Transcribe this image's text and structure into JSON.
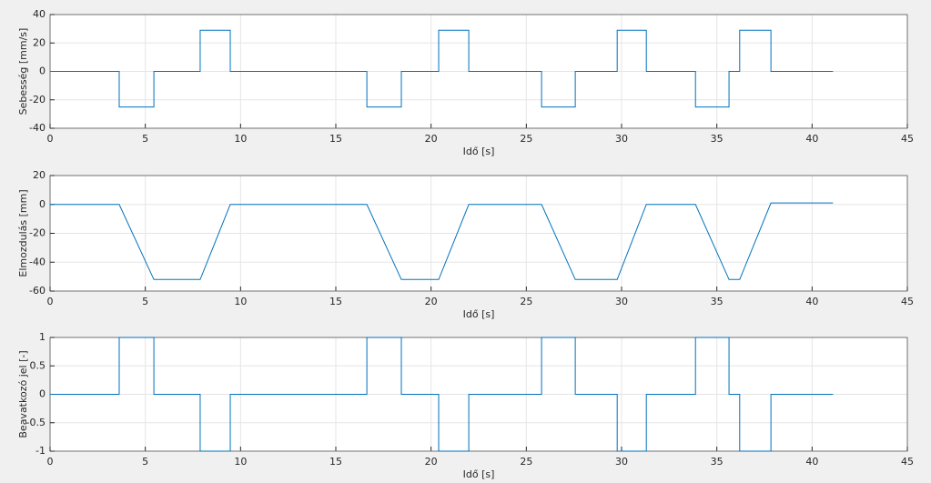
{
  "chart_data": [
    {
      "type": "line",
      "xlabel": "Idő [s]",
      "ylabel": "Sebesség [mm/s]",
      "x": [
        0,
        3.63,
        3.63,
        5.45,
        5.45,
        7.88,
        7.88,
        9.46,
        9.46,
        16.63,
        16.63,
        18.44,
        18.44,
        20.4,
        20.4,
        21.98,
        21.98,
        25.8,
        25.8,
        27.57,
        27.57,
        29.77,
        29.77,
        31.3,
        31.3,
        33.88,
        33.88,
        35.64,
        35.64,
        36.2,
        36.2,
        37.84,
        37.84,
        41.1
      ],
      "values": [
        0,
        0,
        -25,
        -25,
        0,
        0,
        29,
        29,
        0,
        0,
        -25,
        -25,
        0,
        0,
        29,
        29,
        0,
        0,
        -25,
        -25,
        0,
        0,
        29,
        29,
        0,
        0,
        -25,
        -25,
        0,
        0,
        29,
        29,
        0,
        0
      ],
      "color": "#0072bd",
      "xlim": [
        0,
        45
      ],
      "xticks": [
        0,
        5,
        10,
        15,
        20,
        25,
        30,
        35,
        40,
        45
      ],
      "ylim": [
        -40,
        40
      ],
      "yticks": [
        -40,
        -20,
        0,
        20,
        40
      ],
      "grid": true
    },
    {
      "type": "line",
      "xlabel": "Idő [s]",
      "ylabel": "Elmozdulás [mm]",
      "x": [
        0,
        3.63,
        5.45,
        7.88,
        9.46,
        16.63,
        18.44,
        20.4,
        21.98,
        25.8,
        27.57,
        29.77,
        31.3,
        33.88,
        35.64,
        36.2,
        37.84,
        41.1
      ],
      "values": [
        0,
        0,
        -52,
        -52,
        0,
        0,
        -52,
        -52,
        0,
        0,
        -52,
        -52,
        0,
        0,
        -52,
        -52,
        1,
        1
      ],
      "color": "#0072bd",
      "xlim": [
        0,
        45
      ],
      "xticks": [
        0,
        5,
        10,
        15,
        20,
        25,
        30,
        35,
        40,
        45
      ],
      "ylim": [
        -60,
        20
      ],
      "yticks": [
        -60,
        -40,
        -20,
        0,
        20
      ],
      "grid": true
    },
    {
      "type": "line",
      "xlabel": "Idő [s]",
      "ylabel": "Beavatkozó jel [-]",
      "x": [
        0,
        3.63,
        3.63,
        5.45,
        5.45,
        7.88,
        7.88,
        9.46,
        9.46,
        16.63,
        16.63,
        18.44,
        18.44,
        20.4,
        20.4,
        21.98,
        21.98,
        25.8,
        25.8,
        27.57,
        27.57,
        29.77,
        29.77,
        31.3,
        31.3,
        33.88,
        33.88,
        35.64,
        35.64,
        36.2,
        36.2,
        37.84,
        37.84,
        41.1
      ],
      "values": [
        0,
        0,
        1,
        1,
        0,
        0,
        -1,
        -1,
        0,
        0,
        1,
        1,
        0,
        0,
        -1,
        -1,
        0,
        0,
        1,
        1,
        0,
        0,
        -1,
        -1,
        0,
        0,
        1,
        1,
        0,
        0,
        -1,
        -1,
        0,
        0
      ],
      "color": "#0072bd",
      "xlim": [
        0,
        45
      ],
      "xticks": [
        0,
        5,
        10,
        15,
        20,
        25,
        30,
        35,
        40,
        45
      ],
      "ylim": [
        -1,
        1
      ],
      "yticks": [
        -1,
        -0.5,
        0,
        0.5,
        1
      ],
      "grid": true
    }
  ]
}
